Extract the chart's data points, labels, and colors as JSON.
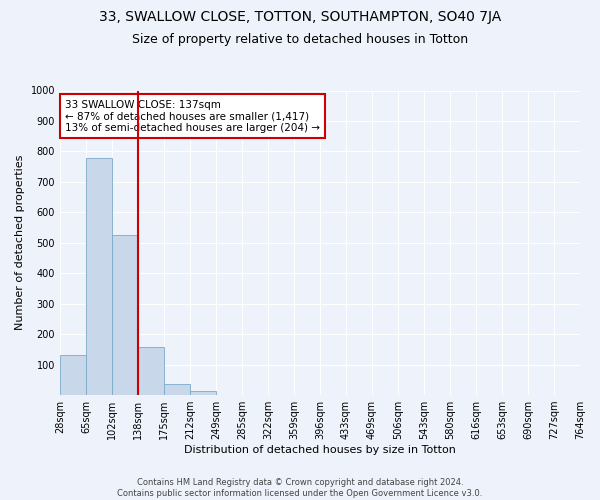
{
  "title": "33, SWALLOW CLOSE, TOTTON, SOUTHAMPTON, SO40 7JA",
  "subtitle": "Size of property relative to detached houses in Totton",
  "xlabel": "Distribution of detached houses by size in Totton",
  "ylabel": "Number of detached properties",
  "bin_labels": [
    "28sqm",
    "65sqm",
    "102sqm",
    "138sqm",
    "175sqm",
    "212sqm",
    "249sqm",
    "285sqm",
    "322sqm",
    "359sqm",
    "396sqm",
    "433sqm",
    "469sqm",
    "506sqm",
    "543sqm",
    "580sqm",
    "616sqm",
    "653sqm",
    "690sqm",
    "727sqm",
    "764sqm"
  ],
  "bar_values": [
    133,
    778,
    525,
    158,
    38,
    13,
    0,
    0,
    0,
    0,
    0,
    0,
    0,
    0,
    0,
    0,
    0,
    0,
    0,
    0
  ],
  "bar_color": "#c8d8ea",
  "bar_edge_color": "#7aaac8",
  "vline_color": "#cc0000",
  "annotation_text": "33 SWALLOW CLOSE: 137sqm\n← 87% of detached houses are smaller (1,417)\n13% of semi-detached houses are larger (204) →",
  "annotation_box_color": "#ffffff",
  "annotation_box_edge_color": "#cc0000",
  "ylim": [
    0,
    1000
  ],
  "yticks": [
    0,
    100,
    200,
    300,
    400,
    500,
    600,
    700,
    800,
    900,
    1000
  ],
  "footnote": "Contains HM Land Registry data © Crown copyright and database right 2024.\nContains public sector information licensed under the Open Government Licence v3.0.",
  "bg_color": "#eef2fb",
  "grid_color": "#ffffff",
  "title_fontsize": 10,
  "subtitle_fontsize": 9,
  "label_fontsize": 8,
  "tick_fontsize": 7,
  "footnote_fontsize": 6
}
